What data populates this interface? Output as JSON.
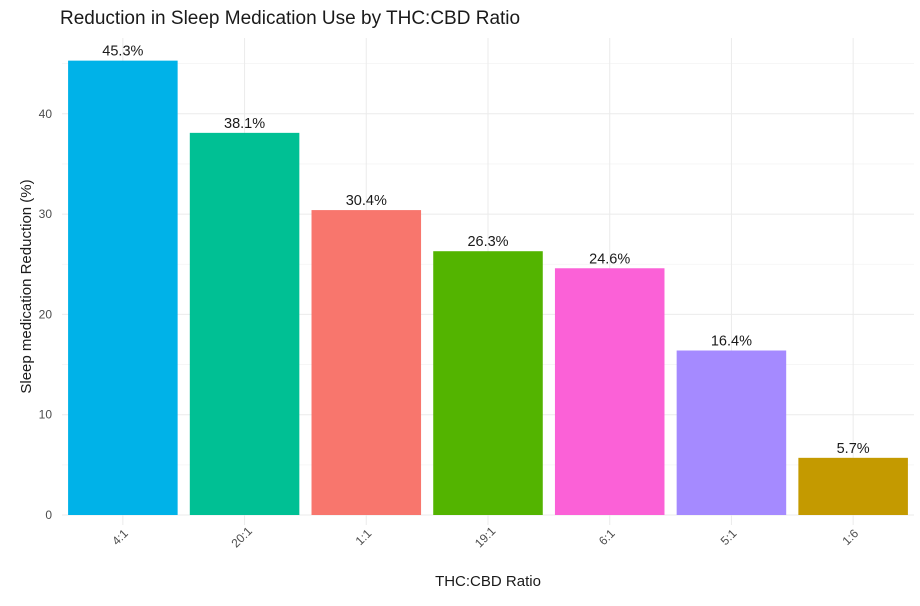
{
  "chart_data": {
    "type": "bar",
    "title": "Reduction in Sleep Medication Use by THC:CBD Ratio",
    "xlabel": "THC:CBD Ratio",
    "ylabel": "Sleep medication Reduction (%)",
    "categories": [
      "4:1",
      "20:1",
      "1:1",
      "19:1",
      "6:1",
      "5:1",
      "1:6"
    ],
    "values": [
      45.3,
      38.1,
      30.4,
      26.3,
      24.6,
      16.4,
      5.7
    ],
    "value_labels": [
      "45.3%",
      "38.1%",
      "30.4%",
      "26.3%",
      "24.6%",
      "16.4%",
      "5.7%"
    ],
    "colors": [
      "#00B2E8",
      "#00C094",
      "#F8766D",
      "#53B400",
      "#FB61D7",
      "#A58AFF",
      "#C49A00"
    ],
    "ylim": [
      0,
      47.5
    ],
    "yticks": [
      0,
      10,
      20,
      30,
      40
    ],
    "grid": true,
    "legend": "none"
  }
}
